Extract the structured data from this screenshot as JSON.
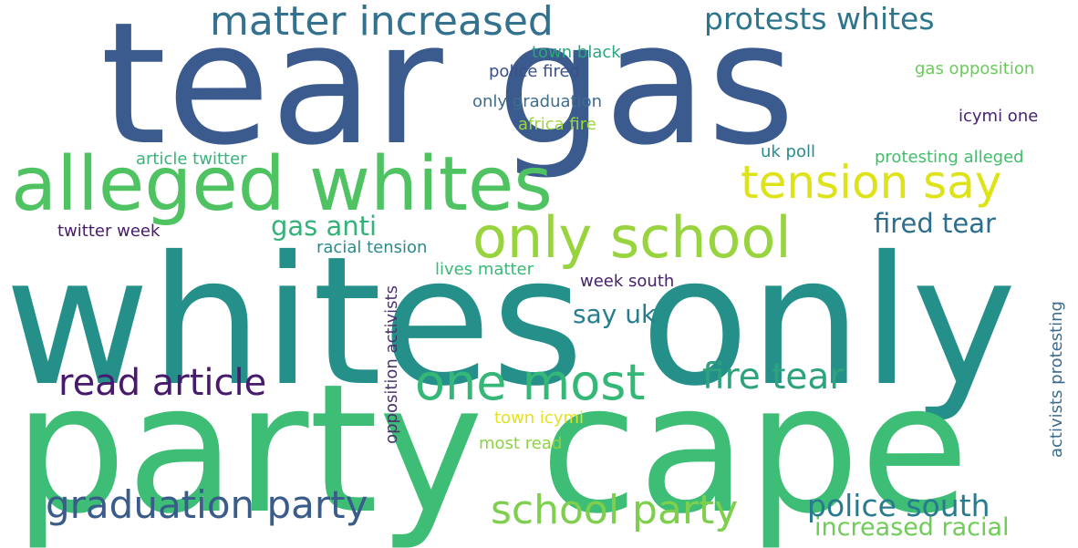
{
  "words": [
    {
      "text": "tear gas",
      "color": "#3b5b8e"
    },
    {
      "text": "whites only",
      "color": "#25908a"
    },
    {
      "text": "party cape",
      "color": "#3dbd75"
    },
    {
      "text": "alleged whites",
      "color": "#4fc262"
    },
    {
      "text": "only school",
      "color": "#97d43e"
    },
    {
      "text": "tension say",
      "color": "#dde318"
    },
    {
      "text": "matter increased",
      "color": "#34718f"
    },
    {
      "text": "protests whites",
      "color": "#2d768d"
    },
    {
      "text": "read article",
      "color": "#481a6c"
    },
    {
      "text": "one most",
      "color": "#35b778"
    },
    {
      "text": "fire tear",
      "color": "#2ea27e"
    },
    {
      "text": "graduation party",
      "color": "#3a5c8b"
    },
    {
      "text": "school party",
      "color": "#7dcf4d"
    },
    {
      "text": "police south",
      "color": "#2a7a8e"
    },
    {
      "text": "increased racial",
      "color": "#6ecd57"
    },
    {
      "text": "fired tear",
      "color": "#2b6e8d"
    },
    {
      "text": "gas anti",
      "color": "#35b279"
    },
    {
      "text": "say uk",
      "color": "#287d8e"
    },
    {
      "text": "town black",
      "color": "#2ba57c"
    },
    {
      "text": "police fired",
      "color": "#3c4f8a"
    },
    {
      "text": "only graduation",
      "color": "#3e6d8e"
    },
    {
      "text": "africa fire",
      "color": "#9cd63a"
    },
    {
      "text": "gas opposition",
      "color": "#6acb5b"
    },
    {
      "text": "icymi one",
      "color": "#46226d"
    },
    {
      "text": "article twitter",
      "color": "#39b37a"
    },
    {
      "text": "uk poll",
      "color": "#2a8a8c"
    },
    {
      "text": "protesting alleged",
      "color": "#43bd6c"
    },
    {
      "text": "twitter week",
      "color": "#471a6a"
    },
    {
      "text": "racial tension",
      "color": "#2b8a8d"
    },
    {
      "text": "lives matter",
      "color": "#39b978"
    },
    {
      "text": "week south",
      "color": "#472268"
    },
    {
      "text": "town icymi",
      "color": "#e4e21b"
    },
    {
      "text": "most read",
      "color": "#8fd244"
    },
    {
      "text": "opposition activists",
      "color": "#4a346e"
    },
    {
      "text": "activists protesting",
      "color": "#3c6b8d"
    }
  ]
}
